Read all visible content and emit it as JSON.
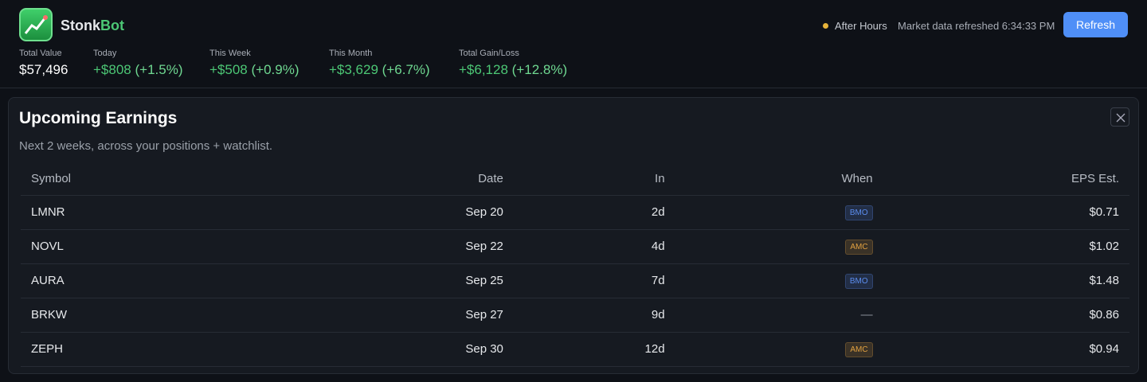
{
  "header": {
    "brand": [
      "Stonk",
      "Bot"
    ],
    "status": "After Hours",
    "refreshed": "Market data refreshed 6:34:33 PM",
    "refresh_button": "Refresh",
    "stats": [
      {
        "label": "Total Value",
        "value": "$57,496"
      },
      {
        "label": "Today",
        "value": "+$808",
        "change": "(+1.5%)"
      },
      {
        "label": "This Week",
        "value": "+$508",
        "change": "(+0.9%)"
      },
      {
        "label": "This Month",
        "value": "+$3,629",
        "change": "(+6.7%)"
      },
      {
        "label": "Total Gain/Loss",
        "value": "+$6,128",
        "change": "(+12.8%)"
      }
    ]
  },
  "panel": {
    "title": "Upcoming Earnings",
    "subtitle": "Next 2 weeks, across your positions + watchlist.",
    "table": {
      "columns": [
        "Symbol",
        "Date",
        "In",
        "When",
        "EPS Est."
      ],
      "rows": [
        {
          "symbol": "LMNR",
          "date": "Sep 20",
          "in": "2d",
          "when": "BMO",
          "when_color": "#5b8def",
          "eps": "$0.71"
        },
        {
          "symbol": "NOVL",
          "date": "Sep 22",
          "in": "4d",
          "when": "AMC",
          "when_color": "#e0a040",
          "eps": "$1.02"
        },
        {
          "symbol": "AURA",
          "date": "Sep 25",
          "in": "7d",
          "when": "BMO",
          "when_color": "#5b8def",
          "eps": "$1.48"
        },
        {
          "symbol": "BRKW",
          "date": "Sep 27",
          "in": "9d",
          "when": "—",
          "eps": "$0.86"
        },
        {
          "symbol": "ZEPH",
          "date": "Sep 30",
          "in": "12d",
          "when": "AMC",
          "when_color": "#e0a040",
          "eps": "$0.94"
        }
      ]
    }
  }
}
